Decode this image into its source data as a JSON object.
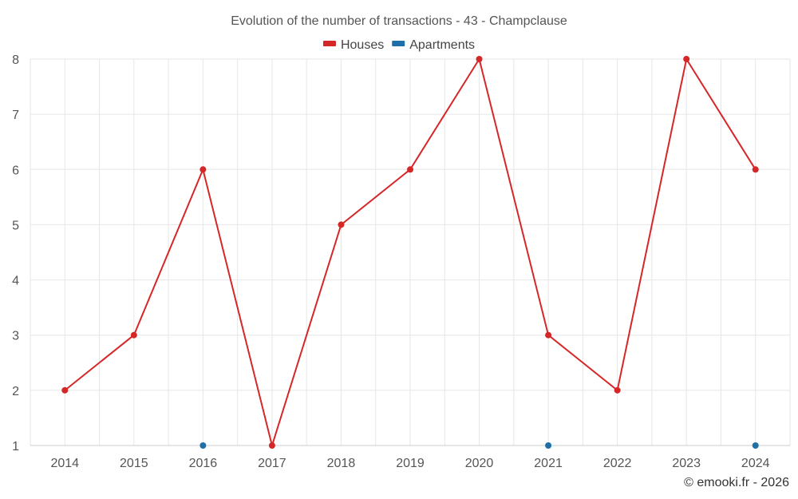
{
  "chart_data": {
    "type": "line",
    "title": "Evolution of the number of transactions - 43 - Champclause",
    "categories": [
      "2014",
      "2015",
      "2016",
      "2017",
      "2018",
      "2019",
      "2020",
      "2021",
      "2022",
      "2023",
      "2024"
    ],
    "series": [
      {
        "name": "Houses",
        "color": "#d62728",
        "values": [
          2,
          3,
          6,
          1,
          5,
          6,
          8,
          3,
          2,
          8,
          6
        ]
      },
      {
        "name": "Apartments",
        "color": "#1f6fa8",
        "values": [
          null,
          null,
          1,
          null,
          null,
          null,
          null,
          1,
          null,
          null,
          1
        ]
      }
    ],
    "ylim": [
      1,
      8
    ],
    "yticks": [
      "1",
      "2",
      "3",
      "4",
      "5",
      "6",
      "7",
      "8"
    ],
    "grid": true,
    "legend_position": "top-center"
  },
  "credit": "© emooki.fr - 2026"
}
